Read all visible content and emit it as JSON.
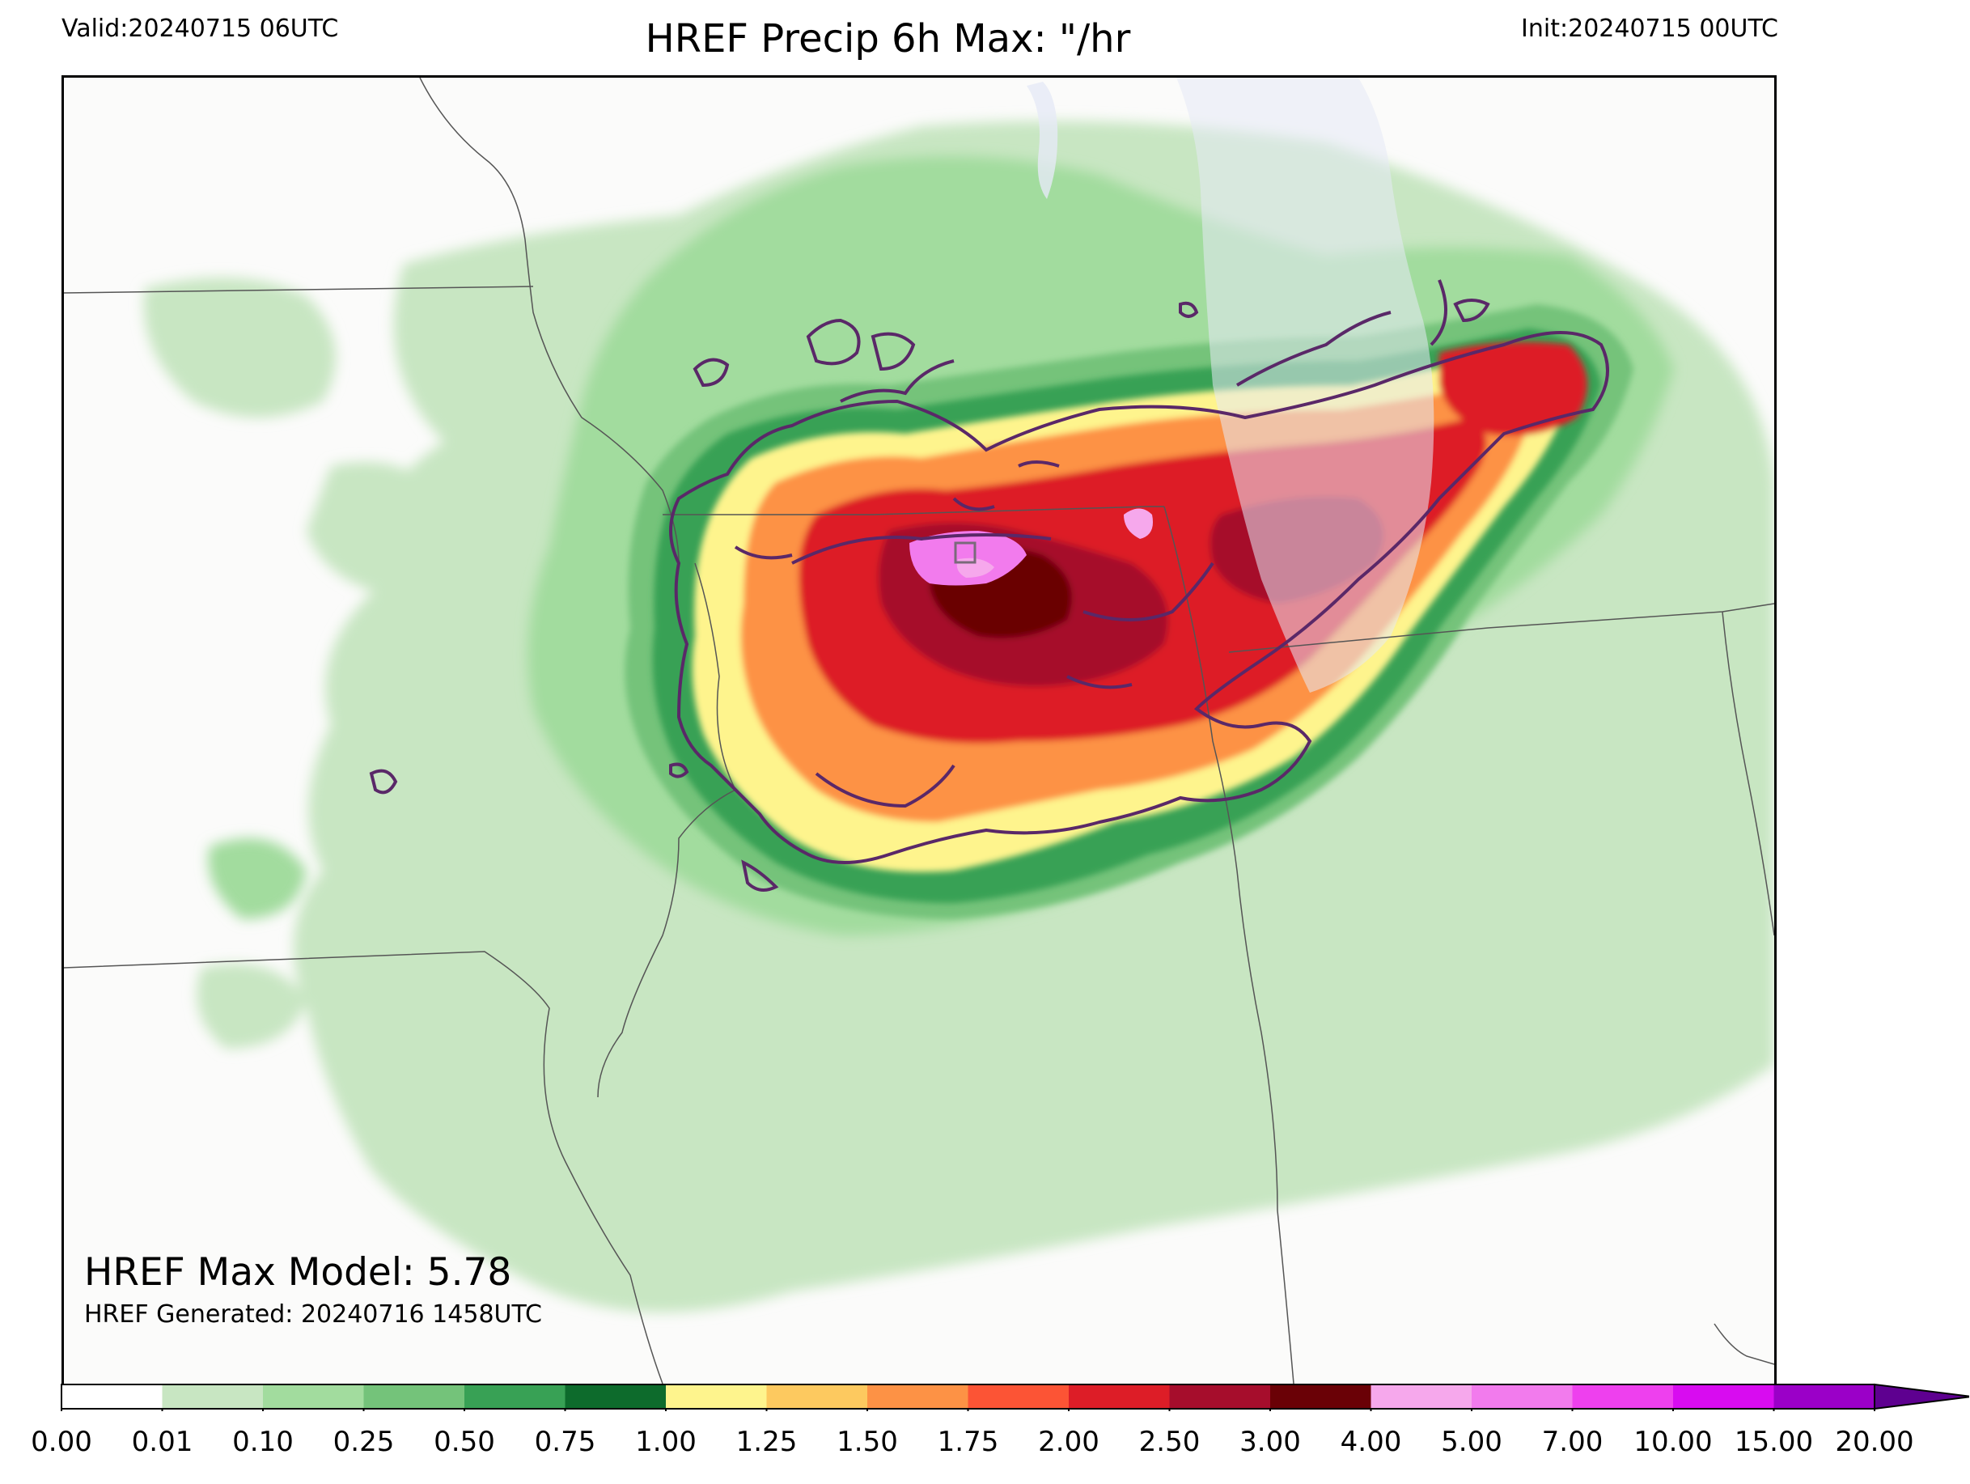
{
  "header": {
    "valid": "Valid:20240715 06UTC",
    "title": "HREF Precip 6h Max: \"/hr",
    "init": "Init:20240715 00UTC"
  },
  "annotations": {
    "max_model": "HREF Max Model: 5.78",
    "generated": "HREF Generated: 20240716 1458UTC"
  },
  "colorbar": {
    "ticks": [
      "0.00",
      "0.01",
      "0.10",
      "0.25",
      "0.50",
      "0.75",
      "1.00",
      "1.25",
      "1.50",
      "1.75",
      "2.00",
      "2.50",
      "3.00",
      "4.00",
      "5.00",
      "7.00",
      "10.00",
      "15.00",
      "20.00"
    ],
    "colors": [
      "#ffffff",
      "#c8e6c2",
      "#a2dc9e",
      "#74c37a",
      "#38a155",
      "#0d6b2c",
      "#fef48d",
      "#fdc95f",
      "#fd9245",
      "#fc5435",
      "#dd1d27",
      "#a60d2c",
      "#6a0106",
      "#f6a8ec",
      "#f27bed",
      "#ee40ee",
      "#d80cf0",
      "#9b00c8"
    ],
    "extend_color": "#5e0090"
  },
  "map": {
    "background": "#fbfbfa",
    "lake_color": "#e6eaf6",
    "contour_color": "#5a2868"
  }
}
